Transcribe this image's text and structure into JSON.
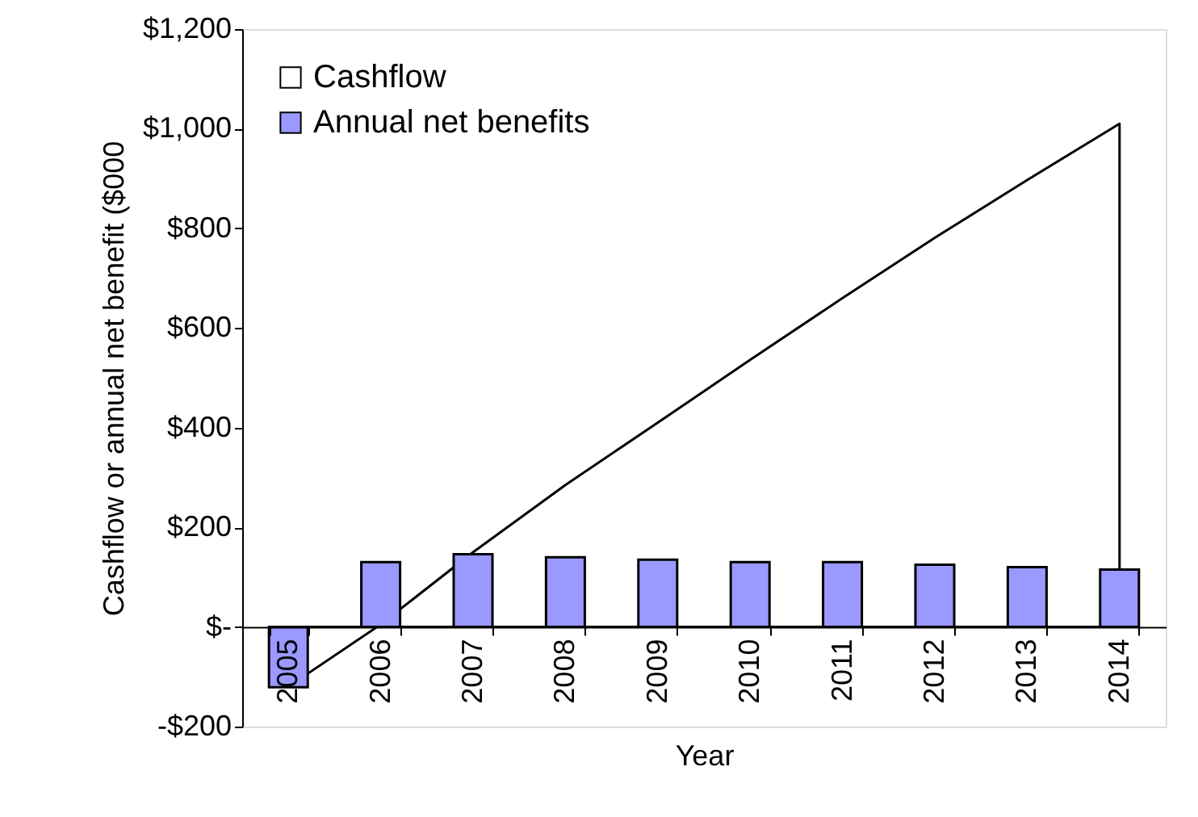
{
  "chart_data": {
    "type": "bar",
    "xlabel": "Year",
    "ylabel": "Cashflow or annual net benefit ($000",
    "categories": [
      "2005",
      "2006",
      "2007",
      "2008",
      "2009",
      "2010",
      "2011",
      "2012",
      "2013",
      "2014"
    ],
    "series": [
      {
        "name": "Cashflow",
        "type": "area",
        "color": "#ffffff",
        "values": [
          -120,
          5,
          150,
          285,
          410,
          536,
          660,
          781,
          897,
          1010
        ]
      },
      {
        "name": "Annual net benefits",
        "type": "bar",
        "color": "#9999ff",
        "values": [
          -121,
          130,
          146,
          140,
          135,
          130,
          130,
          125,
          120,
          115
        ]
      }
    ],
    "ylim": [
      -200,
      1200
    ],
    "yticks": [
      {
        "value": -200,
        "label": "-$200"
      },
      {
        "value": 0,
        "label": "$-"
      },
      {
        "value": 200,
        "label": "$200"
      },
      {
        "value": 400,
        "label": "$400"
      },
      {
        "value": 600,
        "label": "$600"
      },
      {
        "value": 800,
        "label": "$800"
      },
      {
        "value": 1000,
        "label": "$1,000"
      },
      {
        "value": 1200,
        "label": "$1,200"
      }
    ],
    "legend": "top left",
    "grid": false
  }
}
